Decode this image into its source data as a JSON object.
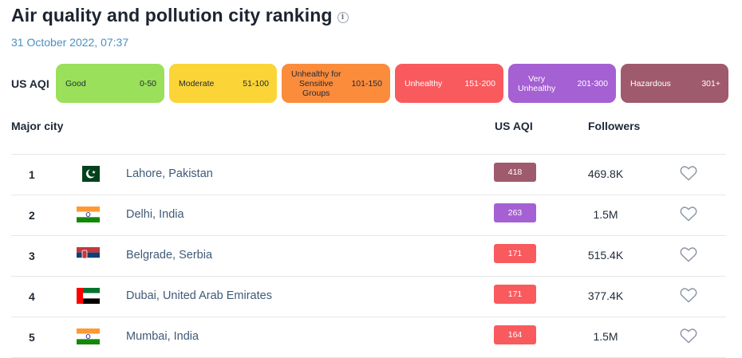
{
  "header": {
    "title": "Air quality and pollution city ranking",
    "timestamp": "31 October 2022, 07:37"
  },
  "legend": {
    "label": "US AQI",
    "items": [
      {
        "category": "Good",
        "range": "0-50",
        "color": "#9ae05a",
        "width": 136
      },
      {
        "category": "Moderate",
        "range": "51-100",
        "color": "#fbd437",
        "width": 135
      },
      {
        "category": "Unhealthy for Sensitive Groups",
        "range": "101-150",
        "color": "#fa8c3c",
        "width": 136
      },
      {
        "category": "Unhealthy",
        "range": "151-200",
        "color": "#f95a5e",
        "width": 136
      },
      {
        "category": "Very Unhealthy",
        "range": "201-300",
        "color": "#a560d3",
        "width": 135
      },
      {
        "category": "Hazardous",
        "range": "301+",
        "color": "#a05a6d",
        "width": 135
      }
    ]
  },
  "table": {
    "headers": {
      "city": "Major city",
      "aqi": "US AQI",
      "followers": "Followers"
    },
    "rows": [
      {
        "rank": "1",
        "flag": "pakistan-flag",
        "city": "Lahore, Pakistan",
        "aqi": "418",
        "aqi_color": "#a05a6d",
        "followers": "469.8K"
      },
      {
        "rank": "2",
        "flag": "india-flag",
        "city": "Delhi, India",
        "aqi": "263",
        "aqi_color": "#a560d3",
        "followers": "1.5M"
      },
      {
        "rank": "3",
        "flag": "serbia-flag",
        "city": "Belgrade, Serbia",
        "aqi": "171",
        "aqi_color": "#f95a5e",
        "followers": "515.4K"
      },
      {
        "rank": "4",
        "flag": "uae-flag",
        "city": "Dubai, United Arab Emirates",
        "aqi": "171",
        "aqi_color": "#f95a5e",
        "followers": "377.4K"
      },
      {
        "rank": "5",
        "flag": "india-flag",
        "city": "Mumbai, India",
        "aqi": "164",
        "aqi_color": "#f95a5e",
        "followers": "1.5M"
      }
    ]
  }
}
